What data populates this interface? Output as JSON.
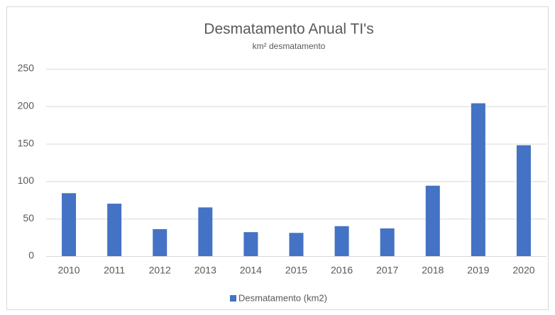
{
  "chart_data": {
    "type": "bar",
    "title": "Desmatamento Anual TI's",
    "subtitle": "km² desmatamento",
    "categories": [
      "2010",
      "2011",
      "2012",
      "2013",
      "2014",
      "2015",
      "2016",
      "2017",
      "2018",
      "2019",
      "2020"
    ],
    "series": [
      {
        "name": "Desmatamento (km2)",
        "color": "#4472c4",
        "values": [
          84,
          70,
          36,
          65,
          32,
          31,
          40,
          37,
          94,
          204,
          148
        ]
      }
    ],
    "ylim": [
      0,
      250
    ],
    "yticks": [
      0,
      50,
      100,
      150,
      200,
      250
    ],
    "grid": true,
    "legend": "bottom"
  }
}
